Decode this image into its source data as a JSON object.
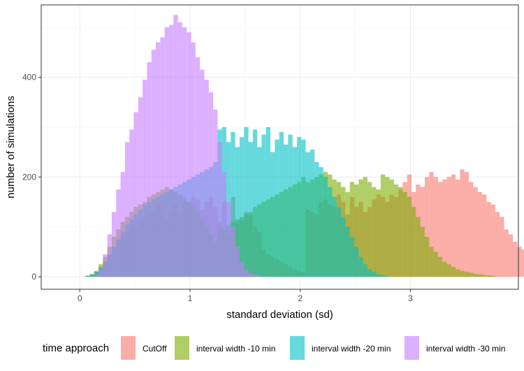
{
  "chart_data": {
    "type": "histogram",
    "xlabel": "standard deviation (sd)",
    "ylabel": "number of simulations",
    "xlim": [
      -0.35,
      3.98
    ],
    "ylim": [
      -25,
      545
    ],
    "x_ticks": [
      0,
      1,
      2,
      3
    ],
    "x_tick_labels": [
      "0",
      "1",
      "2",
      "3"
    ],
    "y_ticks": [
      0,
      200,
      400
    ],
    "y_tick_labels": [
      "0",
      "200",
      "400"
    ],
    "grid": true,
    "bar_opacity": 0.6,
    "legend": {
      "title": "time approach",
      "placement": "bottom"
    },
    "series": [
      {
        "name": "CutOff",
        "color": "#F8766D",
        "bin_start": 0.05,
        "bin_width": 0.04,
        "values": [
          2,
          5,
          10,
          20,
          30,
          45,
          60,
          75,
          85,
          90,
          105,
          100,
          110,
          120,
          125,
          130,
          150,
          140,
          115,
          135,
          145,
          125,
          150,
          150,
          160,
          155,
          135,
          150,
          160,
          140,
          110,
          150,
          85,
          160,
          110,
          115,
          130,
          125,
          100,
          90,
          55,
          45,
          40,
          35,
          30,
          25,
          20,
          15,
          12,
          10,
          135,
          130,
          125,
          150,
          155,
          145,
          140,
          165,
          150,
          125,
          160,
          140,
          150,
          130,
          140,
          155,
          165,
          160,
          150,
          165,
          160,
          175,
          190,
          205,
          170,
          185,
          180,
          200,
          210,
          200,
          190,
          195,
          200,
          205,
          195,
          215,
          210,
          190,
          180,
          170,
          165,
          150,
          145,
          130,
          120,
          95,
          85,
          70,
          60,
          55,
          50,
          40,
          35,
          30,
          25,
          20,
          15,
          12,
          10,
          8,
          6,
          5,
          4,
          3,
          2
        ]
      },
      {
        "name": "interval width -10 min",
        "color": "#7CAE00",
        "bin_start": 0.05,
        "bin_width": 0.04,
        "values": [
          2,
          5,
          12,
          25,
          40,
          60,
          80,
          95,
          110,
          120,
          130,
          140,
          145,
          150,
          160,
          165,
          170,
          175,
          180,
          175,
          170,
          165,
          160,
          150,
          140,
          130,
          115,
          100,
          85,
          70,
          100,
          95,
          105,
          110,
          115,
          120,
          125,
          130,
          140,
          145,
          150,
          155,
          160,
          165,
          170,
          175,
          180,
          185,
          190,
          200,
          190,
          195,
          200,
          205,
          210,
          205,
          195,
          190,
          180,
          170,
          190,
          185,
          195,
          200,
          190,
          180,
          175,
          205,
          200,
          195,
          185,
          180,
          170,
          160,
          140,
          120,
          100,
          80,
          60,
          50,
          40,
          30,
          25,
          20,
          15,
          12,
          10,
          8,
          6,
          5,
          4,
          3,
          2
        ]
      },
      {
        "name": "interval width -20 min",
        "color": "#00BFC4",
        "bin_start": 0.05,
        "bin_width": 0.04,
        "values": [
          2,
          5,
          10,
          18,
          30,
          45,
          60,
          75,
          90,
          105,
          115,
          125,
          135,
          145,
          150,
          155,
          160,
          165,
          170,
          175,
          180,
          185,
          190,
          195,
          200,
          205,
          210,
          215,
          220,
          230,
          295,
          300,
          270,
          290,
          260,
          280,
          300,
          270,
          295,
          260,
          285,
          300,
          250,
          275,
          290,
          265,
          285,
          260,
          280,
          275,
          250,
          255,
          230,
          220,
          200,
          180,
          160,
          140,
          120,
          100,
          80,
          60,
          40,
          25,
          15,
          10,
          5,
          3,
          2
        ]
      },
      {
        "name": "interval width -30 min",
        "color": "#C77CFF",
        "bin_start": 0.05,
        "bin_width": 0.04,
        "values": [
          0,
          0,
          5,
          15,
          45,
          85,
          130,
          175,
          210,
          270,
          295,
          330,
          360,
          395,
          430,
          455,
          470,
          480,
          500,
          505,
          525,
          510,
          500,
          490,
          470,
          440,
          415,
          395,
          370,
          335,
          270,
          210,
          150,
          100,
          60,
          30,
          15,
          8,
          4,
          2
        ]
      }
    ]
  }
}
